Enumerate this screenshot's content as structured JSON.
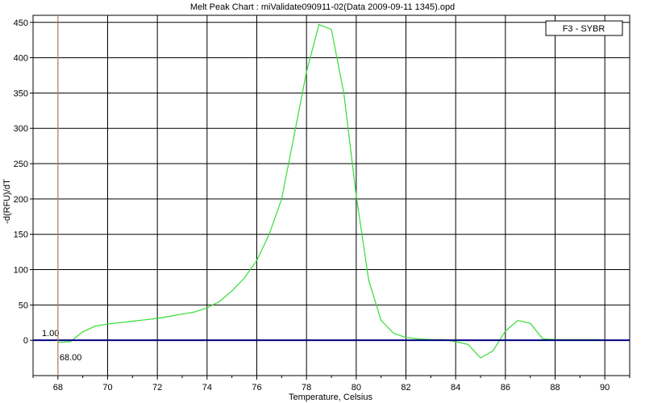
{
  "chart_data": {
    "type": "line",
    "title": "Melt Peak Chart : miValidate090911-02(Data 2009-09-11 1345).opd",
    "xlabel": "Temperature, Celsius",
    "ylabel": "-d(RFU)/dT",
    "xlim": [
      67,
      91
    ],
    "ylim": [
      -50,
      460
    ],
    "xticks": [
      68,
      70,
      72,
      74,
      76,
      78,
      80,
      82,
      84,
      86,
      88,
      90
    ],
    "xticks_minor": [
      67,
      69,
      71,
      73,
      75,
      77,
      79,
      81,
      83,
      85,
      87,
      89,
      91
    ],
    "yticks": [
      0,
      50,
      100,
      150,
      200,
      250,
      300,
      350,
      400,
      450
    ],
    "grid": true,
    "legend_position": "top-right",
    "threshold": {
      "value": 0,
      "label": "1.00",
      "color": "#000080"
    },
    "vertical_marker": {
      "x": 68,
      "label": "68.00",
      "color": "#d9926a"
    },
    "series": [
      {
        "name": "F3 - SYBR",
        "color": "#33dd33",
        "x": [
          68,
          68.5,
          69,
          69.5,
          70,
          70.5,
          71,
          71.5,
          72,
          72.5,
          73,
          73.5,
          74,
          74.5,
          75,
          75.5,
          76,
          76.5,
          77,
          77.5,
          78,
          78.5,
          79,
          79.5,
          80,
          80.5,
          81,
          81.5,
          82,
          82.5,
          83,
          83.5,
          84,
          84.5,
          85,
          85.5,
          86,
          86.5,
          87,
          87.5,
          88,
          88.5,
          89,
          89.5,
          89.8
        ],
        "values": [
          -3,
          -2,
          12,
          20,
          23,
          25,
          27,
          29,
          31,
          34,
          37,
          40,
          46,
          55,
          70,
          88,
          113,
          150,
          200,
          290,
          380,
          447,
          440,
          350,
          205,
          85,
          28,
          10,
          4,
          2,
          1,
          1,
          -2,
          -6,
          -25,
          -15,
          13,
          28,
          24,
          2,
          1,
          1,
          1,
          1,
          1
        ]
      }
    ]
  }
}
